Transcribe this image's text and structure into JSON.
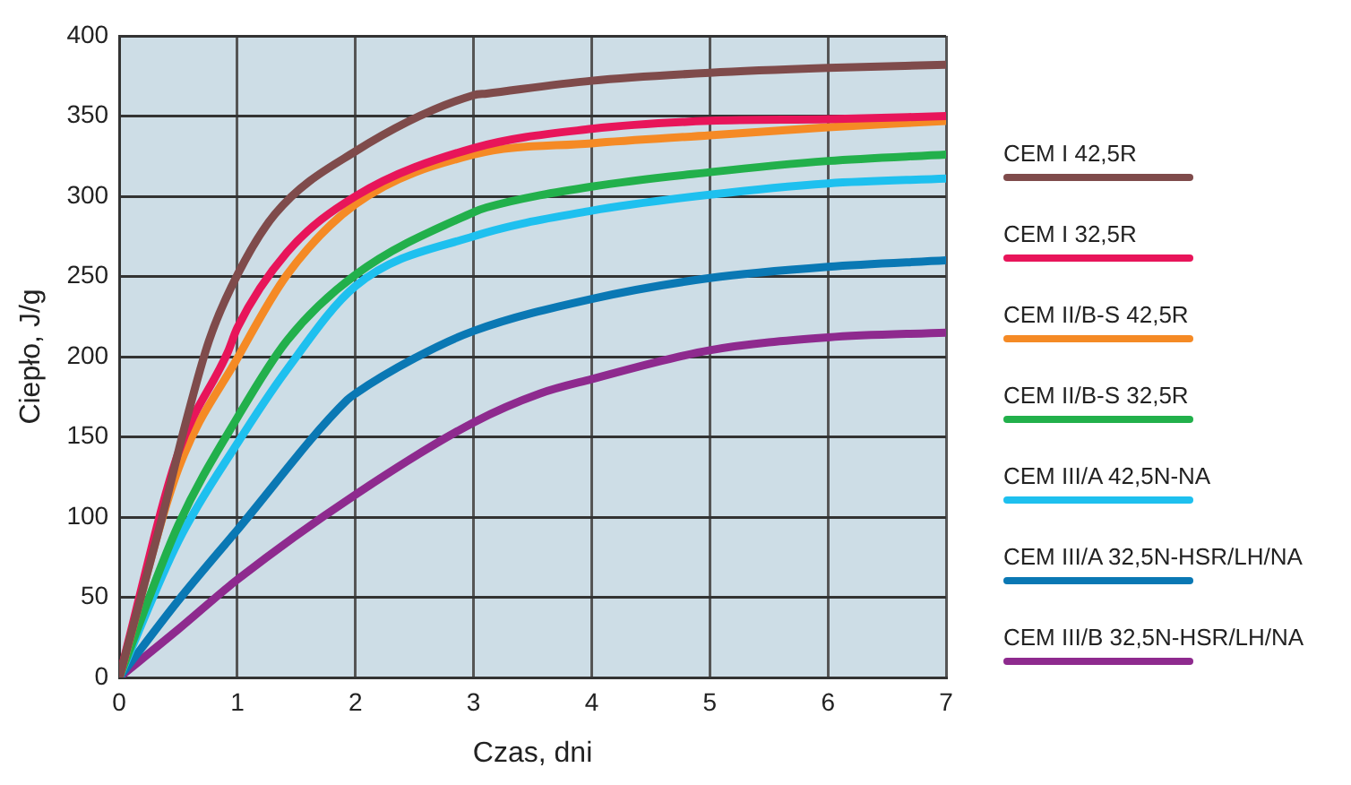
{
  "chart_data": {
    "type": "line",
    "xlabel": "Czas, dni",
    "ylabel": "Ciepło, J/g",
    "xlim": [
      0,
      7
    ],
    "xticks": [
      0,
      1,
      2,
      3,
      4,
      5,
      6,
      7
    ],
    "ylim": [
      0,
      400
    ],
    "yticks": [
      0,
      50,
      100,
      150,
      200,
      250,
      300,
      350,
      400
    ],
    "grid": true,
    "legend": "right",
    "marker": "none",
    "line_style": "solid",
    "series": [
      {
        "name": "CEM I 42,5R",
        "color": "#7f4b4b",
        "x": [
          0,
          0.36,
          0.56,
          0.76,
          1,
          1.32,
          2,
          3,
          3.11,
          4,
          5,
          6,
          7
        ],
        "values": [
          0,
          99,
          158,
          210,
          251,
          289,
          328,
          363,
          364,
          372,
          377,
          380,
          382
        ]
      },
      {
        "name": "CEM I 32,5R",
        "color": "#e8155a",
        "x": [
          0,
          0.5,
          0.92,
          1,
          1.42,
          2,
          3,
          4,
          5,
          6,
          7
        ],
        "values": [
          0,
          140,
          203,
          218,
          265,
          300,
          330,
          342,
          347,
          348,
          350
        ]
      },
      {
        "name": "CEM II/B-S 42,5R",
        "color": "#f58a25",
        "x": [
          0,
          0.5,
          1,
          1.42,
          2,
          3,
          4,
          5,
          6,
          7
        ],
        "values": [
          0,
          130,
          199,
          251,
          295,
          326,
          333,
          338,
          343,
          347
        ]
      },
      {
        "name": "CEM II/B-S 32,5R",
        "color": "#22b04b",
        "x": [
          0,
          0.5,
          1,
          1.42,
          2,
          3,
          3.11,
          4,
          5,
          6,
          7
        ],
        "values": [
          0,
          95,
          162,
          210,
          251,
          290,
          293,
          306,
          315,
          322,
          326
        ]
      },
      {
        "name": "CEM III/A 42,5N-NA",
        "color": "#1ec0ef",
        "x": [
          0,
          0.5,
          1,
          1.42,
          2,
          3,
          4,
          5,
          6,
          7
        ],
        "values": [
          0,
          85,
          146,
          192,
          244,
          275,
          291,
          301,
          308,
          311
        ]
      },
      {
        "name": "CEM III/A 32,5N-HSR/LH/NA",
        "color": "#0a78b4",
        "x": [
          0,
          0.5,
          1,
          1.93,
          2,
          2.5,
          3,
          4,
          5,
          6,
          7
        ],
        "values": [
          0,
          48,
          92,
          173,
          177,
          199,
          216,
          236,
          249,
          256,
          260
        ]
      },
      {
        "name": "CEM III/B 32,5N-HSR/LH/NA",
        "color": "#8e2a8e",
        "x": [
          0,
          0.5,
          1,
          2,
          3,
          3.56,
          4,
          5,
          6,
          7
        ],
        "values": [
          0,
          30,
          61,
          114,
          159,
          177,
          186,
          204,
          212,
          215
        ]
      }
    ]
  }
}
